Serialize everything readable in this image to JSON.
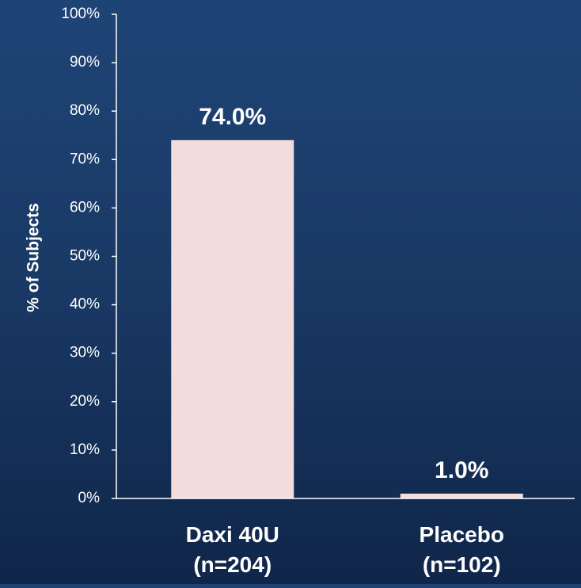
{
  "chart_data": {
    "type": "bar",
    "title": "",
    "xlabel": "",
    "ylabel": "% of Subjects",
    "ylim": [
      0,
      100
    ],
    "yticks": [
      0,
      10,
      20,
      30,
      40,
      50,
      60,
      70,
      80,
      90,
      100
    ],
    "tick_suffix": "%",
    "grid": false,
    "categories": [
      [
        "Daxi 40U",
        "(n=204)"
      ],
      [
        "Placebo",
        "(n=102)"
      ]
    ],
    "values": [
      74.0,
      1.0
    ],
    "data_labels": [
      "74.0%",
      "1.0%"
    ],
    "colors": {
      "bar": "#f2dcdc",
      "text": "#ffffff",
      "axis": "#ffffff"
    }
  }
}
